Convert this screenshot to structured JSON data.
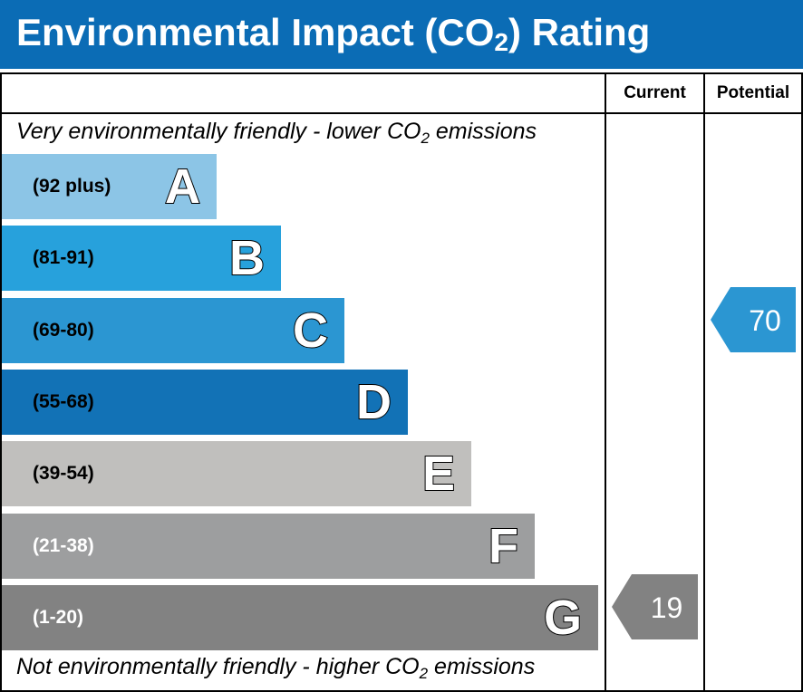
{
  "title": {
    "main": "Environmental Impact (CO",
    "sub": "2",
    "end": ") Rating"
  },
  "columns": {
    "current": "Current",
    "potential": "Potential"
  },
  "captions": {
    "top": {
      "before": "Very environmentally friendly - lower CO",
      "sub": "2",
      "after": " emissions"
    },
    "bottom": {
      "before": "Not environmentally friendly - higher CO",
      "sub": "2",
      "after": " emissions"
    }
  },
  "chart_data": {
    "type": "bar",
    "bands": [
      {
        "letter": "A",
        "range": "(92 plus)",
        "color": "#8cc5e6",
        "text_color": "#000000"
      },
      {
        "letter": "B",
        "range": "(81-91)",
        "color": "#27a1dc",
        "text_color": "#000000"
      },
      {
        "letter": "C",
        "range": "(69-80)",
        "color": "#2b96d2",
        "text_color": "#000000"
      },
      {
        "letter": "D",
        "range": "(55-68)",
        "color": "#1272b6",
        "text_color": "#000000"
      },
      {
        "letter": "E",
        "range": "(39-54)",
        "color": "#c0bfbd",
        "text_color": "#000000"
      },
      {
        "letter": "F",
        "range": "(21-38)",
        "color": "#9d9e9f",
        "text_color": "#ffffff"
      },
      {
        "letter": "G",
        "range": "(1-20)",
        "color": "#828282",
        "text_color": "#ffffff"
      }
    ],
    "current": {
      "value": 19,
      "band": "G",
      "color": "#828282"
    },
    "potential": {
      "value": 70,
      "band": "C",
      "color": "#2b96d2"
    }
  }
}
